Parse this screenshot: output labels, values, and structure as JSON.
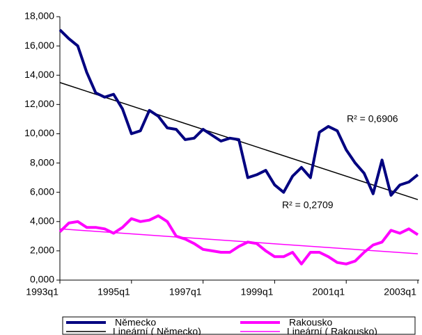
{
  "chart_data": {
    "type": "line",
    "categories": [
      "1993q1",
      null,
      null,
      null,
      null,
      null,
      null,
      null,
      "1995q1",
      null,
      null,
      null,
      null,
      null,
      null,
      null,
      "1997q1",
      null,
      null,
      null,
      null,
      null,
      null,
      null,
      "1999q1",
      null,
      null,
      null,
      null,
      null,
      null,
      null,
      "2001q1",
      null,
      null,
      null,
      null,
      null,
      null,
      null,
      "2003q1"
    ],
    "series": [
      {
        "name": "Německo",
        "color": "#000080",
        "values": [
          17100,
          16500,
          16000,
          14200,
          12800,
          12500,
          12700,
          11700,
          10000,
          10200,
          11600,
          11200,
          10400,
          10300,
          9600,
          9700,
          10300,
          9900,
          9500,
          9700,
          9600,
          7000,
          7200,
          7500,
          6500,
          6000,
          7100,
          7700,
          7000,
          10100,
          10500,
          10200,
          8900,
          8000,
          7300,
          5900,
          8200,
          5800,
          6500,
          6700,
          7200
        ]
      },
      {
        "name": "Rakousko",
        "color": "#ff00ff",
        "values": [
          3300,
          3900,
          4000,
          3600,
          3600,
          3500,
          3200,
          3600,
          4200,
          4000,
          4100,
          4400,
          4000,
          3000,
          2800,
          2500,
          2100,
          2000,
          1900,
          1900,
          2300,
          2600,
          2500,
          2000,
          1600,
          1600,
          1900,
          1100,
          1900,
          1900,
          1600,
          1200,
          1100,
          1300,
          1900,
          2400,
          2600,
          3400,
          3200,
          3500,
          3100
        ]
      }
    ],
    "trendlines": [
      {
        "name": "Lineární ( Německo)",
        "color": "#000000",
        "from": 13500,
        "to": 5500,
        "annotation": "R² = 0,6906"
      },
      {
        "name": "Lineární ( Rakousko)",
        "color": "#ff00ff",
        "from": 3500,
        "to": 1800,
        "annotation": "R² = 0,2709"
      }
    ],
    "ylim": [
      0,
      18000
    ],
    "yticks": [
      {
        "value": 0,
        "label": "0,000"
      },
      {
        "value": 2000,
        "label": "2,000"
      },
      {
        "value": 4000,
        "label": "4,000"
      },
      {
        "value": 6000,
        "label": "6,000"
      },
      {
        "value": 8000,
        "label": "8,000"
      },
      {
        "value": 10000,
        "label": "10,000"
      },
      {
        "value": 12000,
        "label": "12,000"
      },
      {
        "value": 14000,
        "label": "14,000"
      },
      {
        "value": 16000,
        "label": "16,000"
      },
      {
        "value": 18000,
        "label": "18,000"
      }
    ],
    "grid": false
  }
}
